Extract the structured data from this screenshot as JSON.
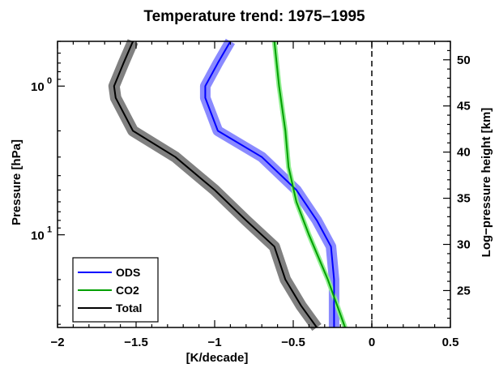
{
  "chart_data": {
    "type": "line",
    "title": "Temperature trend: 1975–1995",
    "xlabel": "[K/decade]",
    "ylabel": "Pressure [hPa]",
    "y2label": "Log−pressure height [km]",
    "xlim": [
      -2,
      0.5
    ],
    "ylim_pressure_hpa": [
      42,
      0.5
    ],
    "y_scale": "log",
    "y_inverted": true,
    "x_ticks": [
      -2,
      -1.5,
      -1,
      -0.5,
      0,
      0.5
    ],
    "x_tick_labels": [
      "−2",
      "−1.5",
      "−1",
      "−0.5",
      "0",
      "0.5"
    ],
    "y_major_ticks": [
      1,
      10
    ],
    "y_tick_labels": [
      {
        "value": 1,
        "base": "10",
        "exp": "0"
      },
      {
        "value": 10,
        "base": "10",
        "exp": "1"
      }
    ],
    "y2_ticks_km": [
      25,
      30,
      35,
      40,
      45,
      50
    ],
    "y2_tick_labels": [
      "25",
      "30",
      "35",
      "40",
      "45",
      "50"
    ],
    "zero_reference_line": {
      "x": 0,
      "style": "dashed"
    },
    "legend_placement": "bottom-left",
    "series": [
      {
        "name": "ODS",
        "color": "#0000ff",
        "band_color": "#8a8aff",
        "pressure": [
          0.5,
          0.7,
          1.0,
          1.2,
          2.0,
          3.0,
          5.0,
          8.0,
          12.0,
          20.0,
          42.0
        ],
        "values": [
          -0.9,
          -0.98,
          -1.06,
          -1.06,
          -0.98,
          -0.7,
          -0.48,
          -0.35,
          -0.26,
          -0.24,
          -0.24
        ],
        "band_halfwidth": [
          0.05,
          0.05,
          0.05,
          0.05,
          0.05,
          0.05,
          0.05,
          0.05,
          0.05,
          0.05,
          0.05
        ]
      },
      {
        "name": "CO2",
        "color": "#00a000",
        "band_color": "#90ee90",
        "pressure": [
          0.5,
          1.0,
          2.0,
          3.5,
          6.0,
          10.0,
          20.0,
          42.0
        ],
        "values": [
          -0.62,
          -0.59,
          -0.55,
          -0.53,
          -0.48,
          -0.4,
          -0.28,
          -0.17
        ],
        "band_halfwidth": [
          0.015,
          0.015,
          0.015,
          0.015,
          0.015,
          0.015,
          0.015,
          0.015
        ]
      },
      {
        "name": "Total",
        "color": "#000000",
        "band_color": "#808080",
        "pressure": [
          0.5,
          0.7,
          1.0,
          1.2,
          2.0,
          3.0,
          5.0,
          8.0,
          12.0,
          20.0,
          30.0,
          42.0
        ],
        "values": [
          -1.52,
          -1.58,
          -1.64,
          -1.63,
          -1.52,
          -1.25,
          -1.0,
          -0.8,
          -0.62,
          -0.55,
          -0.45,
          -0.35
        ],
        "band_halfwidth": [
          0.06,
          0.06,
          0.06,
          0.06,
          0.06,
          0.06,
          0.06,
          0.06,
          0.06,
          0.06,
          0.06,
          0.06
        ]
      }
    ]
  }
}
